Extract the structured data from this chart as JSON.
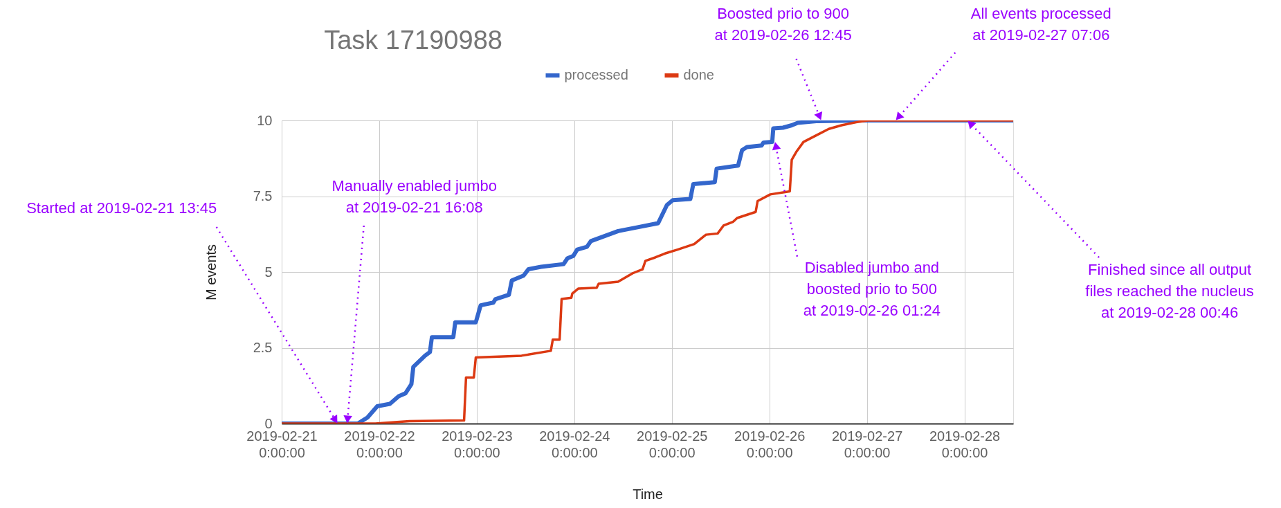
{
  "chart_data": {
    "type": "line",
    "title": "Task 17190988",
    "xlabel": "Time",
    "ylabel": "M events",
    "legend": "top",
    "grid": true,
    "xlim": [
      "2019-02-21T00:00",
      "2019-02-28T12:00"
    ],
    "ylim": [
      0,
      10
    ],
    "xticks": [
      {
        "value": "2019-02-21T00:00",
        "label": "2019-02-21\n0:00:00"
      },
      {
        "value": "2019-02-22T00:00",
        "label": "2019-02-22\n0:00:00"
      },
      {
        "value": "2019-02-23T00:00",
        "label": "2019-02-23\n0:00:00"
      },
      {
        "value": "2019-02-24T00:00",
        "label": "2019-02-24\n0:00:00"
      },
      {
        "value": "2019-02-25T00:00",
        "label": "2019-02-25\n0:00:00"
      },
      {
        "value": "2019-02-26T00:00",
        "label": "2019-02-26\n0:00:00"
      },
      {
        "value": "2019-02-27T00:00",
        "label": "2019-02-27\n0:00:00"
      },
      {
        "value": "2019-02-28T00:00",
        "label": "2019-02-28\n0:00:00"
      }
    ],
    "yticks": [
      0,
      2.5,
      5,
      7.5,
      10
    ],
    "series": [
      {
        "name": "processed",
        "color": "#3366cc",
        "x": [
          "2019-02-21T00:00",
          "2019-02-21T18:43",
          "2019-02-21T21:07",
          "2019-02-21T23:31",
          "2019-02-22T02:38",
          "2019-02-22T04:48",
          "2019-02-22T06:29",
          "2019-02-22T07:55",
          "2019-02-22T08:24",
          "2019-02-22T11:17",
          "2019-02-22T12:29",
          "2019-02-22T12:58",
          "2019-02-22T18:14",
          "2019-02-22T18:43",
          "2019-02-22T23:46",
          "2019-02-23T00:58",
          "2019-02-23T04:05",
          "2019-02-23T04:34",
          "2019-02-23T07:55",
          "2019-02-23T08:38",
          "2019-02-23T11:31",
          "2019-02-23T12:43",
          "2019-02-23T15:50",
          "2019-02-23T21:22",
          "2019-02-23T22:19",
          "2019-02-23T23:46",
          "2019-02-24T00:43",
          "2019-02-24T03:07",
          "2019-02-24T04:05",
          "2019-02-24T10:48",
          "2019-02-24T15:22",
          "2019-02-24T20:38",
          "2019-02-24T22:48",
          "2019-02-25T00:14",
          "2019-02-25T04:34",
          "2019-02-25T05:17",
          "2019-02-25T10:34",
          "2019-02-25T11:02",
          "2019-02-25T16:19",
          "2019-02-25T17:17",
          "2019-02-25T18:29",
          "2019-02-25T22:05",
          "2019-02-25T22:34",
          "2019-02-26T00:43",
          "2019-02-26T00:58",
          "2019-02-26T03:22",
          "2019-02-26T05:31",
          "2019-02-26T06:58",
          "2019-02-26T12:00",
          "2019-02-26T23:46",
          "2019-02-28T12:00"
        ],
        "values": [
          0,
          0,
          0.2,
          0.57,
          0.65,
          0.9,
          1.0,
          1.3,
          1.87,
          2.24,
          2.36,
          2.85,
          2.85,
          3.34,
          3.34,
          3.9,
          3.99,
          4.1,
          4.25,
          4.72,
          4.88,
          5.09,
          5.17,
          5.26,
          5.45,
          5.53,
          5.74,
          5.83,
          6.02,
          6.35,
          6.47,
          6.61,
          7.21,
          7.37,
          7.41,
          7.9,
          7.96,
          8.41,
          8.51,
          9.02,
          9.12,
          9.17,
          9.27,
          9.29,
          9.74,
          9.76,
          9.84,
          9.92,
          9.98,
          10,
          10
        ]
      },
      {
        "name": "done",
        "color": "#dc3912",
        "x": [
          "2019-02-21T00:00",
          "2019-02-21T23:02",
          "2019-02-22T07:26",
          "2019-02-22T20:53",
          "2019-02-22T21:22",
          "2019-02-22T23:17",
          "2019-02-22T23:46",
          "2019-02-23T11:02",
          "2019-02-23T18:14",
          "2019-02-23T18:43",
          "2019-02-23T20:24",
          "2019-02-23T20:53",
          "2019-02-23T23:17",
          "2019-02-23T23:31",
          "2019-02-24T00:58",
          "2019-02-24T05:31",
          "2019-02-24T06:00",
          "2019-02-24T10:48",
          "2019-02-24T14:24",
          "2019-02-24T16:48",
          "2019-02-24T17:31",
          "2019-02-24T19:55",
          "2019-02-24T22:19",
          "2019-02-25T01:26",
          "2019-02-25T05:31",
          "2019-02-25T08:24",
          "2019-02-25T11:17",
          "2019-02-25T12:43",
          "2019-02-25T15:07",
          "2019-02-25T16:05",
          "2019-02-25T20:38",
          "2019-02-25T21:07",
          "2019-02-26T00:14",
          "2019-02-26T05:02",
          "2019-02-26T05:31",
          "2019-02-26T06:43",
          "2019-02-26T08:24",
          "2019-02-26T11:17",
          "2019-02-26T14:38",
          "2019-02-26T17:46",
          "2019-02-26T21:22",
          "2019-02-27T00:14",
          "2019-02-28T12:00"
        ],
        "values": [
          0,
          0,
          0.08,
          0.1,
          1.52,
          1.52,
          2.18,
          2.24,
          2.4,
          2.77,
          2.77,
          4.11,
          4.15,
          4.29,
          4.45,
          4.48,
          4.61,
          4.68,
          4.96,
          5.09,
          5.37,
          5.48,
          5.61,
          5.74,
          5.92,
          6.23,
          6.27,
          6.53,
          6.66,
          6.78,
          6.98,
          7.34,
          7.56,
          7.66,
          8.7,
          8.98,
          9.29,
          9.49,
          9.72,
          9.84,
          9.94,
          10,
          10
        ]
      }
    ],
    "annotations": [
      {
        "text": "Started at 2019-02-21 13:45",
        "x": "2019-02-21T13:45",
        "y": 0
      },
      {
        "text": "Manually enabled jumbo\nat 2019-02-21 16:08",
        "x": "2019-02-21T16:08",
        "y": 0
      },
      {
        "text": "Disabled jumbo and\nboosted prio to 500\nat 2019-02-26 01:24",
        "x": "2019-02-26T01:24",
        "y": 9.3
      },
      {
        "text": "Boosted prio to 900\nat 2019-02-26 12:45",
        "x": "2019-02-26T12:45",
        "y": 10
      },
      {
        "text": "All events processed\nat 2019-02-27 07:06",
        "x": "2019-02-27T07:06",
        "y": 10
      },
      {
        "text": "Finished since all output\nfiles reached the nucleus\nat 2019-02-28 00:46",
        "x": "2019-02-28T00:46",
        "y": 10
      }
    ]
  }
}
